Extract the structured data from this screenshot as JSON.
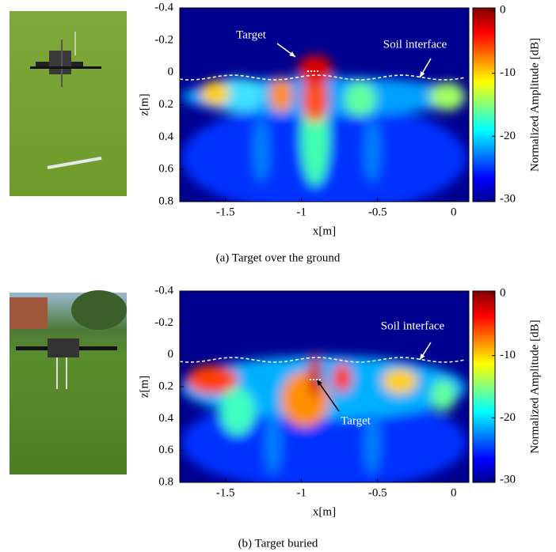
{
  "chart_data": [
    {
      "type": "heatmap",
      "caption": "(a) Target over the ground",
      "xlabel": "x[m]",
      "ylabel": "z[m]",
      "xlim": [
        -1.8,
        0.1
      ],
      "ylim": [
        0.8,
        -0.4
      ],
      "xticks": [
        -1.5,
        -1,
        -0.5,
        0
      ],
      "yticks": [
        -0.4,
        -0.2,
        0,
        0.2,
        0.4,
        0.6,
        0.8
      ],
      "colorbar": {
        "label": "Normalized Amplitude [dB]",
        "lim": [
          -30,
          0
        ],
        "ticks": [
          0,
          -10,
          -20,
          -30
        ]
      },
      "annotations": [
        "Target",
        "Soil interface"
      ]
    },
    {
      "type": "heatmap",
      "caption": "(b) Target buried",
      "xlabel": "x[m]",
      "ylabel": "z[m]",
      "xlim": [
        -1.8,
        0.1
      ],
      "ylim": [
        0.8,
        -0.4
      ],
      "xticks": [
        -1.5,
        -1,
        -0.5,
        0
      ],
      "yticks": [
        -0.4,
        -0.2,
        0,
        0.2,
        0.4,
        0.6,
        0.8
      ],
      "colorbar": {
        "label": "Normalized Amplitude [dB]",
        "lim": [
          -30,
          0
        ],
        "ticks": [
          0,
          -10,
          -20,
          -30
        ]
      },
      "annotations": [
        "Soil interface",
        "Target"
      ]
    }
  ]
}
